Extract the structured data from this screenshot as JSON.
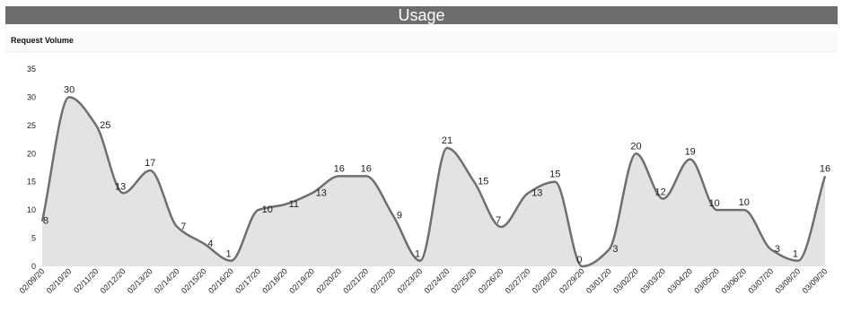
{
  "header": {
    "title": "Usage"
  },
  "section": {
    "label": "Request Volume"
  },
  "colors": {
    "title_bar": "#6d6d6d",
    "line": "#6f6f6f",
    "area_fill": "#e3e3e3"
  },
  "chart_data": {
    "type": "area",
    "title": "Usage",
    "subtitle": "Request Volume",
    "xlabel": "",
    "ylabel": "",
    "ylim": [
      0,
      35
    ],
    "yticks": [
      0,
      5,
      10,
      15,
      20,
      25,
      30,
      35
    ],
    "grid": false,
    "legend": "none",
    "categories": [
      "02/09/20",
      "02/10/20",
      "02/11/20",
      "02/12/20",
      "02/13/20",
      "02/14/20",
      "02/15/20",
      "02/16/20",
      "02/17/20",
      "02/18/20",
      "02/19/20",
      "02/20/20",
      "02/21/20",
      "02/22/20",
      "02/23/20",
      "02/24/20",
      "02/25/20",
      "02/26/20",
      "02/27/20",
      "02/28/20",
      "02/29/20",
      "03/01/20",
      "03/02/20",
      "03/03/20",
      "03/04/20",
      "03/05/20",
      "03/06/20",
      "03/07/20",
      "03/08/20",
      "03/09/20"
    ],
    "values": [
      8,
      30,
      25,
      13,
      17,
      7,
      4,
      1,
      10,
      11,
      13,
      16,
      16,
      9,
      1,
      21,
      15,
      7,
      13,
      15,
      0,
      3,
      20,
      12,
      19,
      10,
      10,
      3,
      1,
      16
    ]
  }
}
